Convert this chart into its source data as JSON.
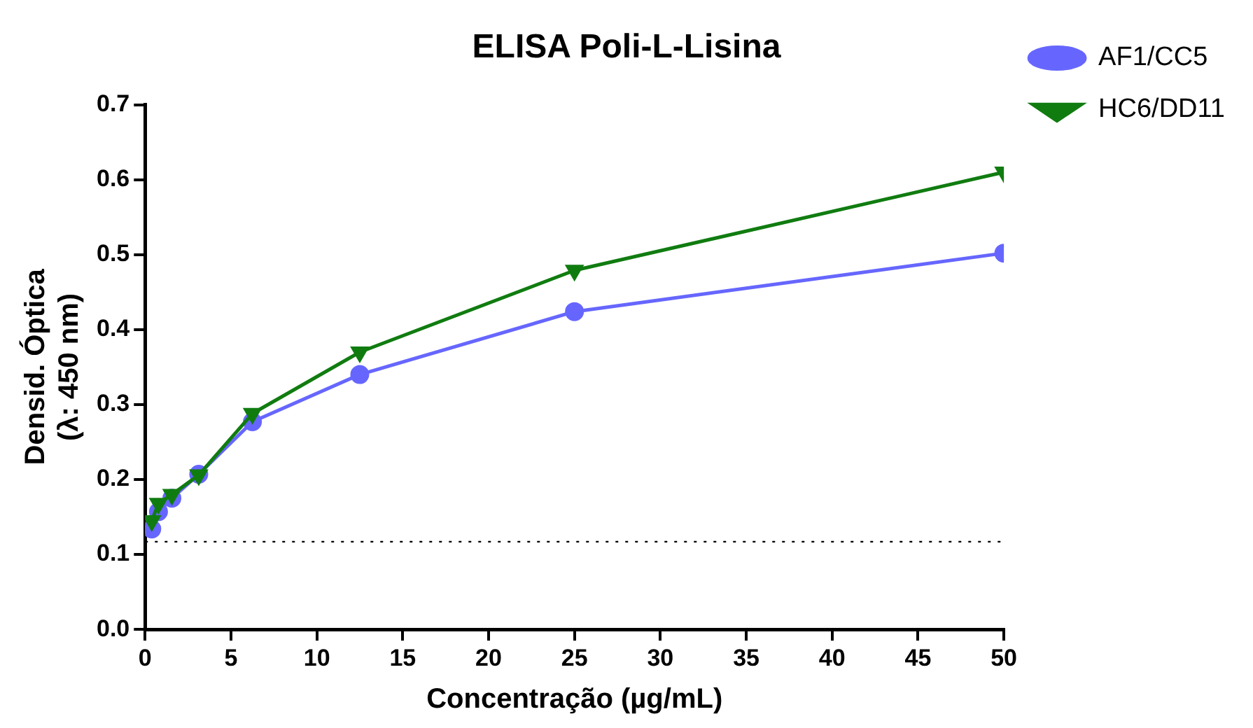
{
  "chart_data": {
    "type": "line",
    "title": "ELISA Poli-L-Lisina",
    "xlabel": "Concentração (µg/mL)",
    "ylabel": "Densid. Óptica\n(λ: 450 nm)",
    "x": [
      0.39,
      0.78,
      1.56,
      3.125,
      6.25,
      12.5,
      25,
      50
    ],
    "series": [
      {
        "name": "AF1/CC5",
        "color": "#6666ff",
        "marker": "circle",
        "values": [
          0.134,
          0.157,
          0.175,
          0.207,
          0.277,
          0.34,
          0.424,
          0.502
        ]
      },
      {
        "name": "HC6/DD11",
        "color": "#107c10",
        "marker": "triangle",
        "values": [
          0.145,
          0.168,
          0.18,
          0.206,
          0.288,
          0.37,
          0.479,
          0.61
        ]
      }
    ],
    "xlim": [
      0,
      50
    ],
    "xticks": [
      0,
      5,
      10,
      15,
      20,
      25,
      30,
      35,
      40,
      45,
      50
    ],
    "ylim": [
      0,
      0.7
    ],
    "yticks": [
      {
        "value": 0,
        "label": "0.0"
      },
      {
        "value": 0.1,
        "label": "0.1"
      },
      {
        "value": 0.2,
        "label": "0.2"
      },
      {
        "value": 0.3,
        "label": "0.3"
      },
      {
        "value": 0.4,
        "label": "0.4"
      },
      {
        "value": 0.5,
        "label": "0.5"
      },
      {
        "value": 0.6,
        "label": "0.6"
      },
      {
        "value": 0.7,
        "label": "0.7"
      }
    ],
    "ref_lines": [
      {
        "axis": "y",
        "value": 0.117,
        "color": "#000000",
        "line_style": "dotted"
      }
    ],
    "grid": false,
    "legend": "top right",
    "line_style": "solid"
  }
}
